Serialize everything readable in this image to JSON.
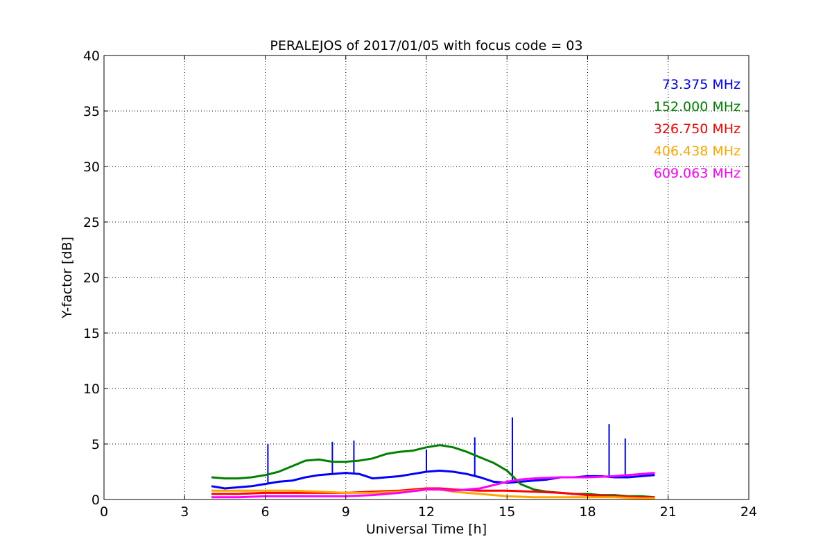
{
  "chart_data": {
    "type": "line",
    "title": "PERALEJOS of 2017/01/05 with focus code = 03",
    "xlabel": "Universal Time [h]",
    "ylabel": "Y-factor [dB]",
    "xlim": [
      0,
      24
    ],
    "ylim": [
      0,
      40
    ],
    "xticks": [
      0,
      3,
      6,
      9,
      12,
      15,
      18,
      21,
      24
    ],
    "yticks": [
      0,
      5,
      10,
      15,
      20,
      25,
      30,
      35,
      40
    ],
    "grid": true,
    "legend_position": "top-right",
    "series": [
      {
        "name": "73.375 MHz",
        "color": "#0000ff",
        "x": [
          4.0,
          4.5,
          5.0,
          5.5,
          6.0,
          6.5,
          7.0,
          7.5,
          8.0,
          8.5,
          9.0,
          9.5,
          10.0,
          10.5,
          11.0,
          11.5,
          12.0,
          12.5,
          13.0,
          13.5,
          14.0,
          14.5,
          15.0,
          15.5,
          16.0,
          16.5,
          17.0,
          17.5,
          18.0,
          18.5,
          19.0,
          19.5,
          20.0,
          20.5
        ],
        "y": [
          1.2,
          1.0,
          1.1,
          1.2,
          1.4,
          1.6,
          1.7,
          2.0,
          2.2,
          2.3,
          2.4,
          2.3,
          1.9,
          2.0,
          2.1,
          2.3,
          2.5,
          2.6,
          2.5,
          2.3,
          2.0,
          1.6,
          1.5,
          1.6,
          1.7,
          1.8,
          2.0,
          2.0,
          2.1,
          2.1,
          2.0,
          2.0,
          2.1,
          2.2
        ],
        "spikes": [
          [
            6.1,
            5.0
          ],
          [
            8.5,
            5.2
          ],
          [
            9.3,
            5.3
          ],
          [
            12.0,
            4.5
          ],
          [
            13.8,
            5.6
          ],
          [
            15.2,
            7.4
          ],
          [
            18.8,
            6.8
          ],
          [
            19.4,
            5.5
          ]
        ]
      },
      {
        "name": "152.000 MHz",
        "color": "#008000",
        "x": [
          4.0,
          4.5,
          5.0,
          5.5,
          6.0,
          6.5,
          7.0,
          7.5,
          8.0,
          8.5,
          9.0,
          9.5,
          10.0,
          10.5,
          11.0,
          11.5,
          12.0,
          12.5,
          13.0,
          13.5,
          14.0,
          14.5,
          15.0,
          15.5,
          16.0,
          16.5,
          17.0,
          17.5,
          18.0,
          18.5,
          19.0,
          19.5,
          20.0,
          20.5
        ],
        "y": [
          2.0,
          1.9,
          1.9,
          2.0,
          2.2,
          2.5,
          3.0,
          3.5,
          3.6,
          3.4,
          3.4,
          3.5,
          3.7,
          4.1,
          4.3,
          4.4,
          4.7,
          4.9,
          4.7,
          4.3,
          3.8,
          3.3,
          2.6,
          1.4,
          0.9,
          0.7,
          0.6,
          0.5,
          0.5,
          0.4,
          0.4,
          0.3,
          0.3,
          0.2
        ]
      },
      {
        "name": "326.750 MHz",
        "color": "#ff0000",
        "x": [
          4.0,
          5.0,
          6.0,
          7.0,
          8.0,
          9.0,
          10.0,
          11.0,
          12.0,
          12.5,
          13.0,
          14.0,
          15.0,
          16.0,
          17.0,
          18.0,
          19.0,
          20.0,
          20.5
        ],
        "y": [
          0.5,
          0.5,
          0.6,
          0.6,
          0.6,
          0.6,
          0.7,
          0.8,
          1.0,
          1.0,
          0.9,
          0.8,
          0.8,
          0.7,
          0.6,
          0.4,
          0.3,
          0.2,
          0.2
        ]
      },
      {
        "name": "406.438 MHz",
        "color": "#ffa500",
        "x": [
          4.0,
          5.0,
          6.0,
          7.0,
          8.0,
          9.0,
          10.0,
          11.0,
          12.0,
          12.5,
          13.0,
          14.0,
          15.0,
          16.0,
          17.0,
          18.0,
          19.0,
          20.0,
          20.5
        ],
        "y": [
          0.8,
          0.8,
          0.8,
          0.8,
          0.7,
          0.6,
          0.6,
          0.7,
          0.9,
          0.9,
          0.7,
          0.5,
          0.3,
          0.2,
          0.2,
          0.2,
          0.2,
          0.1,
          0.1
        ]
      },
      {
        "name": "609.063 MHz",
        "color": "#ff00ff",
        "x": [
          4.0,
          5.0,
          6.0,
          7.0,
          8.0,
          9.0,
          10.0,
          11.0,
          12.0,
          12.5,
          13.0,
          14.0,
          14.5,
          15.0,
          15.5,
          16.0,
          17.0,
          18.0,
          19.0,
          20.0,
          20.5
        ],
        "y": [
          0.2,
          0.2,
          0.3,
          0.3,
          0.3,
          0.3,
          0.4,
          0.6,
          0.9,
          0.9,
          0.8,
          1.0,
          1.3,
          1.6,
          1.8,
          1.9,
          2.0,
          2.0,
          2.1,
          2.3,
          2.4
        ]
      }
    ]
  }
}
